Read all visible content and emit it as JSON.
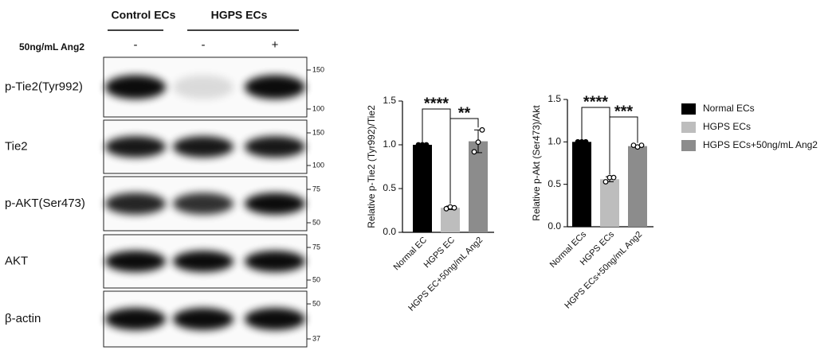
{
  "blot": {
    "groups": [
      "Control ECs",
      "HGPS ECs"
    ],
    "treatment_label": "50ng/mL Ang2",
    "treatment": [
      "-",
      "-",
      "+"
    ],
    "rows": [
      {
        "label": "p-Tie2(Tyr992)",
        "markers": [
          150,
          100
        ]
      },
      {
        "label": "Tie2",
        "markers": [
          150,
          100
        ]
      },
      {
        "label": "p-AKT(Ser473)",
        "markers": [
          75,
          50
        ]
      },
      {
        "label": "AKT",
        "markers": [
          75,
          50
        ]
      },
      {
        "label": "β-actin",
        "markers": [
          50,
          37
        ]
      }
    ]
  },
  "chart_data": [
    {
      "type": "bar",
      "ylabel": "Relative p-Tie2 (Tyr992)/Tie2",
      "categories": [
        "Normal EC",
        "HGPS EC",
        "HGPS EC+50ng/mL Ang2"
      ],
      "values": [
        1.0,
        0.28,
        1.04
      ],
      "errors": [
        0,
        0.02,
        0.13
      ],
      "points": [
        [
          1,
          1,
          1
        ],
        [
          0.27,
          0.29,
          0.28
        ],
        [
          0.92,
          1.03,
          1.17
        ]
      ],
      "colors": [
        "#000000",
        "#bdbdbd",
        "#8c8c8c"
      ],
      "ylim": [
        0,
        1.5
      ],
      "yticks": [
        {
          "value": 0,
          "label": "0.0"
        },
        {
          "value": 0.5,
          "label": "0.5"
        },
        {
          "value": 1,
          "label": "1.0"
        },
        {
          "value": 1.5,
          "label": "1.5"
        }
      ],
      "annotations": [
        "****",
        "**"
      ]
    },
    {
      "type": "bar",
      "ylabel": "Relative p-Akt (Ser473)/Akt",
      "categories": [
        "Normal ECs",
        "HGPS ECs",
        "HGPS ECs+50ng/mL Ang2"
      ],
      "values": [
        1.0,
        0.56,
        0.95
      ],
      "errors": [
        0,
        0.03,
        0.01
      ],
      "points": [
        [
          1,
          1,
          1
        ],
        [
          0.53,
          0.58,
          0.58
        ],
        [
          0.96,
          0.94,
          0.96
        ]
      ],
      "colors": [
        "#000000",
        "#bdbdbd",
        "#8c8c8c"
      ],
      "ylim": [
        0,
        1.5
      ],
      "yticks": [
        {
          "value": 0,
          "label": "0.0"
        },
        {
          "value": 0.5,
          "label": "0.5"
        },
        {
          "value": 1,
          "label": "1.0"
        },
        {
          "value": 1.5,
          "label": "1.5"
        }
      ],
      "annotations": [
        "****",
        "***"
      ],
      "legend": true
    }
  ]
}
